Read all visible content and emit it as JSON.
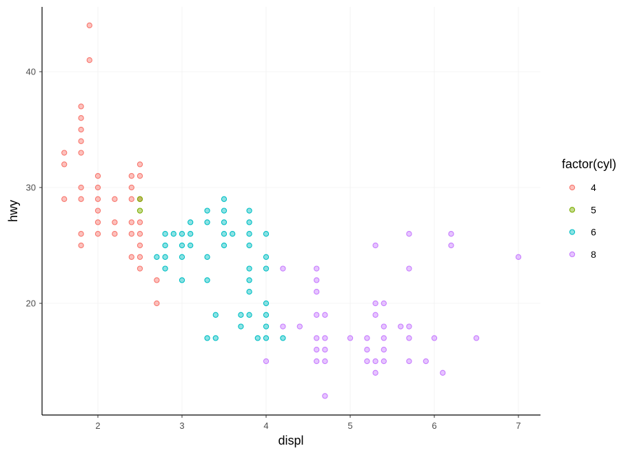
{
  "chart_data": {
    "type": "scatter",
    "xlabel": "displ",
    "ylabel": "hwy",
    "xlim": [
      1.33,
      7.27
    ],
    "ylim": [
      10.4,
      45.6
    ],
    "xticks": [
      2,
      3,
      4,
      5,
      6,
      7
    ],
    "yticks": [
      20,
      30,
      40
    ],
    "xtick_labels": [
      "2",
      "3",
      "4",
      "5",
      "6",
      "7"
    ],
    "ytick_labels": [
      "20",
      "30",
      "40"
    ],
    "grid": true,
    "legend": {
      "title": "factor(cyl)",
      "placement": "right"
    },
    "series": [
      {
        "name": "4",
        "color": "#F8766D",
        "points": [
          [
            1.6,
            33
          ],
          [
            1.6,
            32
          ],
          [
            1.6,
            29
          ],
          [
            1.9,
            44
          ],
          [
            1.9,
            41
          ],
          [
            1.8,
            37
          ],
          [
            1.8,
            36
          ],
          [
            1.8,
            35
          ],
          [
            1.8,
            34
          ],
          [
            1.8,
            33
          ],
          [
            1.8,
            30
          ],
          [
            1.8,
            29
          ],
          [
            1.8,
            26
          ],
          [
            1.8,
            25
          ],
          [
            2.0,
            31
          ],
          [
            2.0,
            30
          ],
          [
            2.0,
            29
          ],
          [
            2.0,
            28
          ],
          [
            2.0,
            27
          ],
          [
            2.0,
            26
          ],
          [
            2.2,
            29
          ],
          [
            2.2,
            27
          ],
          [
            2.2,
            26
          ],
          [
            2.4,
            31
          ],
          [
            2.4,
            30
          ],
          [
            2.4,
            29
          ],
          [
            2.4,
            27
          ],
          [
            2.4,
            26
          ],
          [
            2.4,
            24
          ],
          [
            2.5,
            32
          ],
          [
            2.5,
            31
          ],
          [
            2.5,
            29
          ],
          [
            2.5,
            27
          ],
          [
            2.5,
            26
          ],
          [
            2.5,
            25
          ],
          [
            2.5,
            24
          ],
          [
            2.5,
            23
          ],
          [
            2.7,
            22
          ],
          [
            2.7,
            20
          ]
        ]
      },
      {
        "name": "5",
        "color": "#7CAE00",
        "points": [
          [
            2.5,
            29
          ],
          [
            2.5,
            28
          ]
        ]
      },
      {
        "name": "6",
        "color": "#00BFC4",
        "points": [
          [
            2.7,
            24
          ],
          [
            2.8,
            26
          ],
          [
            2.8,
            25
          ],
          [
            2.8,
            24
          ],
          [
            2.8,
            23
          ],
          [
            2.9,
            26
          ],
          [
            3.0,
            26
          ],
          [
            3.0,
            25
          ],
          [
            3.0,
            24
          ],
          [
            3.0,
            22
          ],
          [
            3.1,
            27
          ],
          [
            3.1,
            26
          ],
          [
            3.1,
            25
          ],
          [
            3.3,
            28
          ],
          [
            3.3,
            27
          ],
          [
            3.3,
            24
          ],
          [
            3.3,
            22
          ],
          [
            3.3,
            17
          ],
          [
            3.4,
            19
          ],
          [
            3.4,
            17
          ],
          [
            3.5,
            29
          ],
          [
            3.5,
            28
          ],
          [
            3.5,
            27
          ],
          [
            3.5,
            26
          ],
          [
            3.5,
            25
          ],
          [
            3.6,
            26
          ],
          [
            3.7,
            19
          ],
          [
            3.7,
            18
          ],
          [
            3.8,
            28
          ],
          [
            3.8,
            27
          ],
          [
            3.8,
            26
          ],
          [
            3.8,
            25
          ],
          [
            3.8,
            23
          ],
          [
            3.8,
            22
          ],
          [
            3.8,
            21
          ],
          [
            3.8,
            19
          ],
          [
            3.9,
            17
          ],
          [
            4.0,
            26
          ],
          [
            4.0,
            24
          ],
          [
            4.0,
            23
          ],
          [
            4.0,
            20
          ],
          [
            4.0,
            19
          ],
          [
            4.0,
            18
          ],
          [
            4.0,
            17
          ],
          [
            4.2,
            17
          ]
        ]
      },
      {
        "name": "8",
        "color": "#C77CFF",
        "points": [
          [
            4.0,
            15
          ],
          [
            4.2,
            23
          ],
          [
            4.2,
            18
          ],
          [
            4.4,
            18
          ],
          [
            4.6,
            23
          ],
          [
            4.6,
            22
          ],
          [
            4.6,
            21
          ],
          [
            4.6,
            19
          ],
          [
            4.6,
            17
          ],
          [
            4.6,
            16
          ],
          [
            4.6,
            15
          ],
          [
            4.7,
            19
          ],
          [
            4.7,
            17
          ],
          [
            4.7,
            16
          ],
          [
            4.7,
            15
          ],
          [
            4.7,
            12
          ],
          [
            5.0,
            17
          ],
          [
            5.2,
            17
          ],
          [
            5.2,
            16
          ],
          [
            5.2,
            15
          ],
          [
            5.3,
            25
          ],
          [
            5.3,
            20
          ],
          [
            5.3,
            19
          ],
          [
            5.3,
            15
          ],
          [
            5.3,
            14
          ],
          [
            5.4,
            20
          ],
          [
            5.4,
            18
          ],
          [
            5.4,
            17
          ],
          [
            5.4,
            16
          ],
          [
            5.4,
            15
          ],
          [
            5.6,
            18
          ],
          [
            5.7,
            26
          ],
          [
            5.7,
            23
          ],
          [
            5.7,
            18
          ],
          [
            5.7,
            17
          ],
          [
            5.7,
            15
          ],
          [
            5.9,
            15
          ],
          [
            6.0,
            17
          ],
          [
            6.1,
            14
          ],
          [
            6.2,
            26
          ],
          [
            6.2,
            25
          ],
          [
            6.5,
            17
          ],
          [
            7.0,
            24
          ]
        ]
      }
    ]
  }
}
